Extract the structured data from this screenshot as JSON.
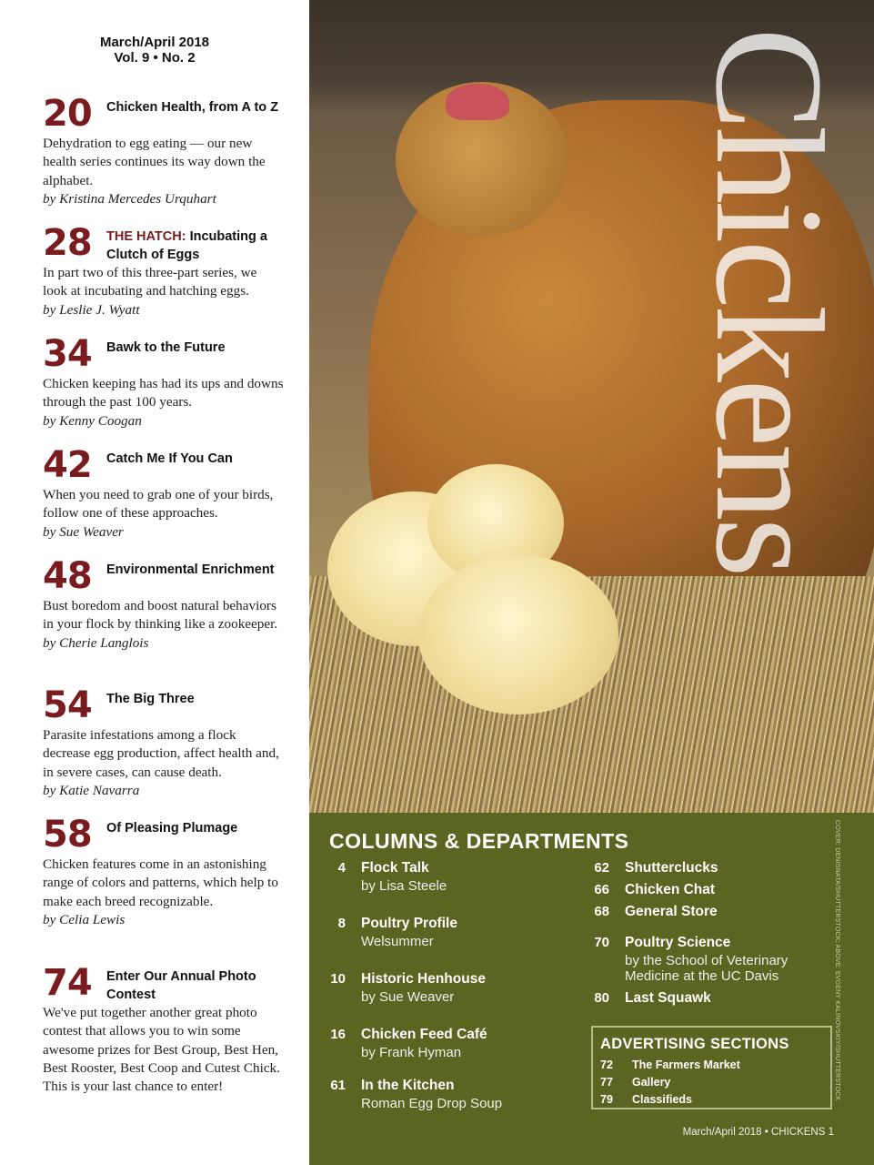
{
  "issue": {
    "date": "March/April 2018",
    "volume": "Vol. 9 • No. 2"
  },
  "articles": [
    {
      "page": "20",
      "kicker": "",
      "title": "Chicken Health, from A to Z",
      "desc": "Dehydration to egg eating — our new health series continues its way down the alphabet.",
      "byline": "by Kristina Mercedes Urquhart"
    },
    {
      "page": "28",
      "kicker": "THE HATCH:",
      "title": "Incubating a Clutch of Eggs",
      "desc": "In part two of this three-part series, we look at incubating and hatching eggs.",
      "byline": "by Leslie J. Wyatt"
    },
    {
      "page": "34",
      "kicker": "",
      "title": "Bawk to the Future",
      "desc": "Chicken keeping has had its ups and downs through the past 100 years.",
      "byline": "by Kenny Coogan"
    },
    {
      "page": "42",
      "kicker": "",
      "title": "Catch Me If You Can",
      "desc": "When you need to grab one of your birds, follow one of these approaches.",
      "byline": "by Sue Weaver"
    },
    {
      "page": "48",
      "kicker": "",
      "title": "Environmental Enrichment",
      "desc": "Bust boredom and boost natural behaviors in your flock by thinking like a zookeeper.",
      "byline": "by Cherie Langlois"
    },
    {
      "page": "54",
      "kicker": "",
      "title": "The Big Three",
      "desc": "Parasite infestations among a flock decrease egg production, affect health and, in severe cases, can cause death.",
      "byline": "by Katie Navarra"
    },
    {
      "page": "58",
      "kicker": "",
      "title": "Of Pleasing Plumage",
      "desc": "Chicken features come in an astonishing range of colors and patterns, which help to make each breed recognizable.",
      "byline": "by Celia Lewis"
    },
    {
      "page": "74",
      "kicker": "",
      "title": "Enter Our Annual Photo Contest",
      "desc": "We've put together another great photo contest that allows you to win some awesome prizes for Best Group, Best Hen, Best Rooster, Best Coop and Cutest Chick. This is your last chance to enter!",
      "byline": ""
    }
  ],
  "cover": {
    "brand": "Chickens"
  },
  "columns": {
    "heading": "COLUMNS & DEPARTMENTS",
    "left": [
      {
        "page": "4",
        "name": "Flock Talk",
        "sub": "by Lisa Steele"
      },
      {
        "page": "8",
        "name": "Poultry Profile",
        "sub": "Welsummer"
      },
      {
        "page": "10",
        "name": "Historic Henhouse",
        "sub": "by Sue Weaver"
      },
      {
        "page": "16",
        "name": "Chicken Feed Café",
        "sub": "by Frank Hyman"
      },
      {
        "page": "61",
        "name": "In the Kitchen",
        "sub": "Roman Egg Drop Soup"
      }
    ],
    "right": [
      {
        "page": "62",
        "name": "Shutterclucks",
        "sub": ""
      },
      {
        "page": "66",
        "name": "Chicken Chat",
        "sub": ""
      },
      {
        "page": "68",
        "name": "General Store",
        "sub": ""
      },
      {
        "page": "70",
        "name": "Poultry Science",
        "sub": "by the School of Veterinary Medicine at the UC Davis"
      },
      {
        "page": "80",
        "name": "Last Squawk",
        "sub": ""
      }
    ]
  },
  "advertising": {
    "heading": "ADVERTISING SECTIONS",
    "items": [
      {
        "page": "72",
        "name": "The Farmers Market"
      },
      {
        "page": "77",
        "name": "Gallery"
      },
      {
        "page": "79",
        "name": "Classifieds"
      }
    ]
  },
  "credit": "COVER: DENISNATA/SHUTTERSTOCK; ABOVE: EVGENY KALINOVSKIY/SHUTTERSTOCK",
  "footer": "March/April 2018  •  CHICKENS    1",
  "colors": {
    "accent": "#7a1b1f",
    "green": "#5b6420"
  }
}
